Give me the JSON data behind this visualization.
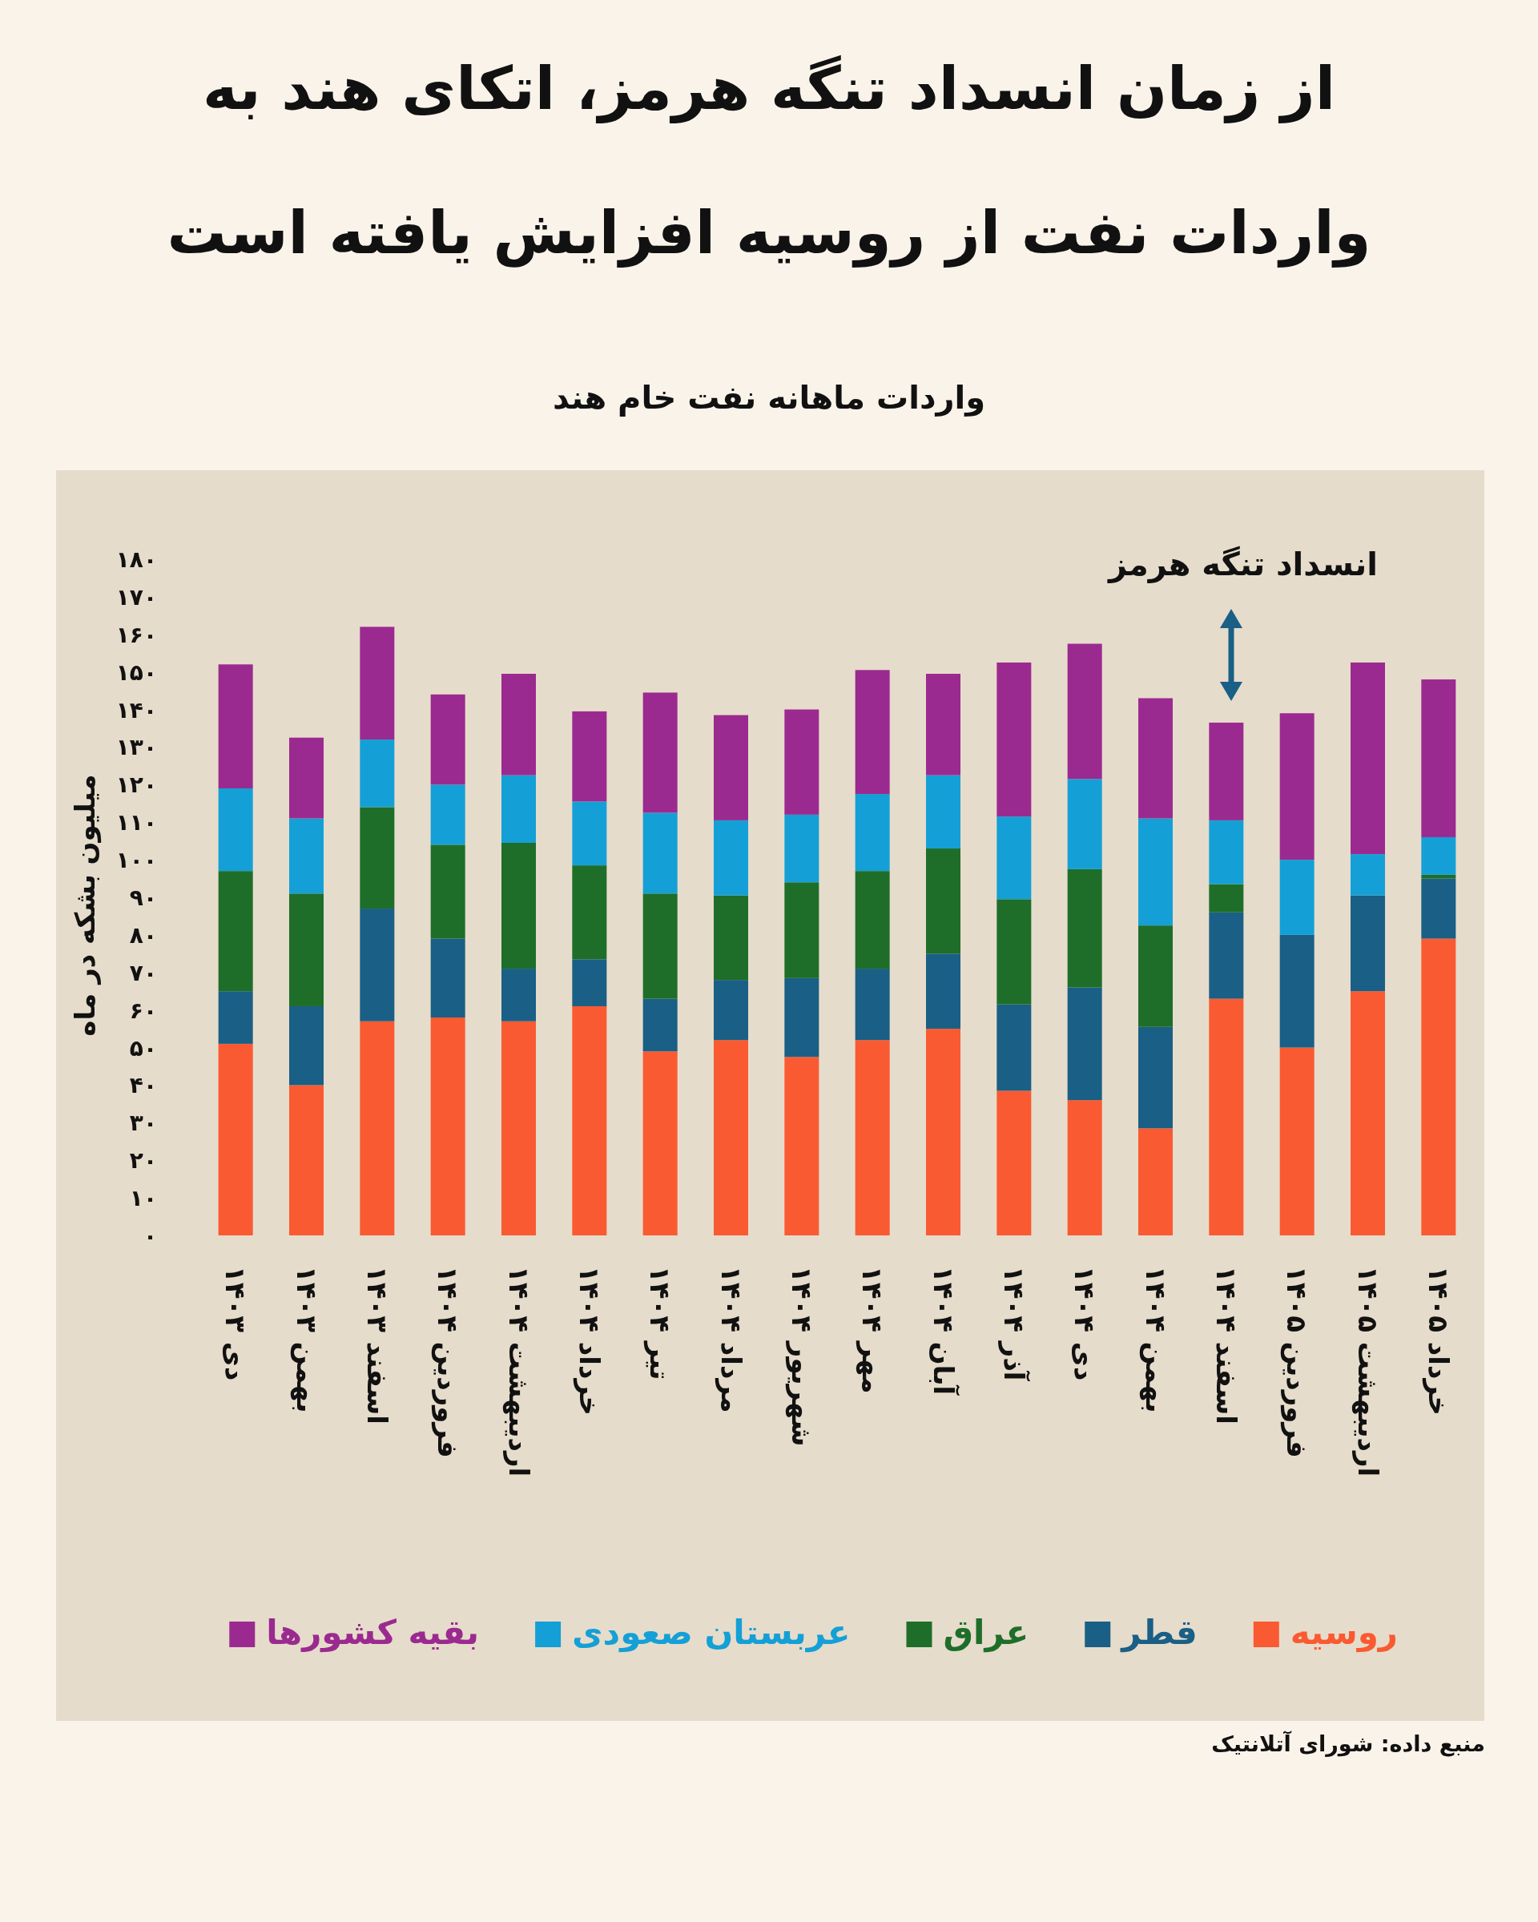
{
  "chart_data": {
    "type": "bar",
    "stacked": true,
    "title": "از زمان انسداد تنگه هرمز، اتکای هند به واردات نفت از روسیه افزایش یافته است",
    "subtitle": "واردات ماهانه نفت خام هند",
    "ylabel": "میلیون بشکه در ماه",
    "categories": [
      "دی ۱۴۰۳",
      "بهمن ۱۴۰۳",
      "اسفند ۱۴۰۳",
      "فروردین ۱۴۰۴",
      "اردیبهشت ۱۴۰۴",
      "خرداد ۱۴۰۴",
      "تیر ۱۴۰۴",
      "مرداد ۱۴۰۴",
      "شهریور ۱۴۰۴",
      "مهر ۱۴۰۴",
      "آبان ۱۴۰۴",
      "آذر ۱۴۰۴",
      "دی ۱۴۰۴",
      "بهمن ۱۴۰۴",
      "اسفند ۱۴۰۴",
      "فروردین ۱۴۰۵",
      "اردیبهشت ۱۴۰۵",
      "خرداد ۱۴۰۵"
    ],
    "series": [
      {
        "name": "روسیه",
        "color": "#fa5a32",
        "values": [
          51,
          40,
          57,
          58,
          57,
          61,
          49,
          52,
          47.5,
          52,
          55,
          38.5,
          36,
          28.5,
          63,
          50,
          65,
          79
        ]
      },
      {
        "name": "قطر",
        "color": "#1a5f85",
        "values": [
          14,
          21,
          30,
          21,
          14,
          12.5,
          14,
          16,
          21,
          19,
          20,
          23,
          30,
          27,
          23,
          30,
          25.5,
          16
        ]
      },
      {
        "name": "عراق",
        "color": "#1e6e2a",
        "values": [
          32,
          30,
          27,
          25,
          33.5,
          25,
          28,
          22.5,
          25.5,
          26,
          28,
          28,
          31.5,
          27,
          7.5,
          0,
          0,
          1
        ]
      },
      {
        "name": "عربستان صعودی",
        "color": "#14a0d6",
        "values": [
          22,
          20,
          18,
          16,
          18,
          17,
          21.5,
          20,
          18,
          20.5,
          19.5,
          22,
          24,
          28.5,
          17,
          20,
          11,
          10
        ]
      },
      {
        "name": "بقیه کشورها",
        "color": "#9b2a90",
        "values": [
          33,
          21.5,
          30,
          24,
          27,
          24,
          32,
          28,
          28,
          33,
          27,
          41,
          36,
          32,
          26,
          39,
          51,
          42
        ]
      }
    ],
    "ylim": [
      0,
      180
    ],
    "yticks": [
      {
        "value": 0,
        "label": "۰"
      },
      {
        "value": 10,
        "label": "۱۰"
      },
      {
        "value": 20,
        "label": "۲۰"
      },
      {
        "value": 30,
        "label": "۳۰"
      },
      {
        "value": 40,
        "label": "۴۰"
      },
      {
        "value": 50,
        "label": "۵۰"
      },
      {
        "value": 60,
        "label": "۶۰"
      },
      {
        "value": 70,
        "label": "۷۰"
      },
      {
        "value": 80,
        "label": "۸۰"
      },
      {
        "value": 90,
        "label": "۹۰"
      },
      {
        "value": 100,
        "label": "۱۰۰"
      },
      {
        "value": 110,
        "label": "۱۱۰"
      },
      {
        "value": 120,
        "label": "۱۲۰"
      },
      {
        "value": 130,
        "label": "۱۳۰"
      },
      {
        "value": 140,
        "label": "۱۴۰"
      },
      {
        "value": 150,
        "label": "۱۵۰"
      },
      {
        "value": 160,
        "label": "۱۶۰"
      },
      {
        "value": 170,
        "label": "۱۷۰"
      },
      {
        "value": 180,
        "label": "۱۸۰"
      }
    ],
    "legend": "bottom",
    "annotations": [
      "انسداد تنگه هرمز",
      "منبع داده: شورای آتلانتیک"
    ]
  }
}
